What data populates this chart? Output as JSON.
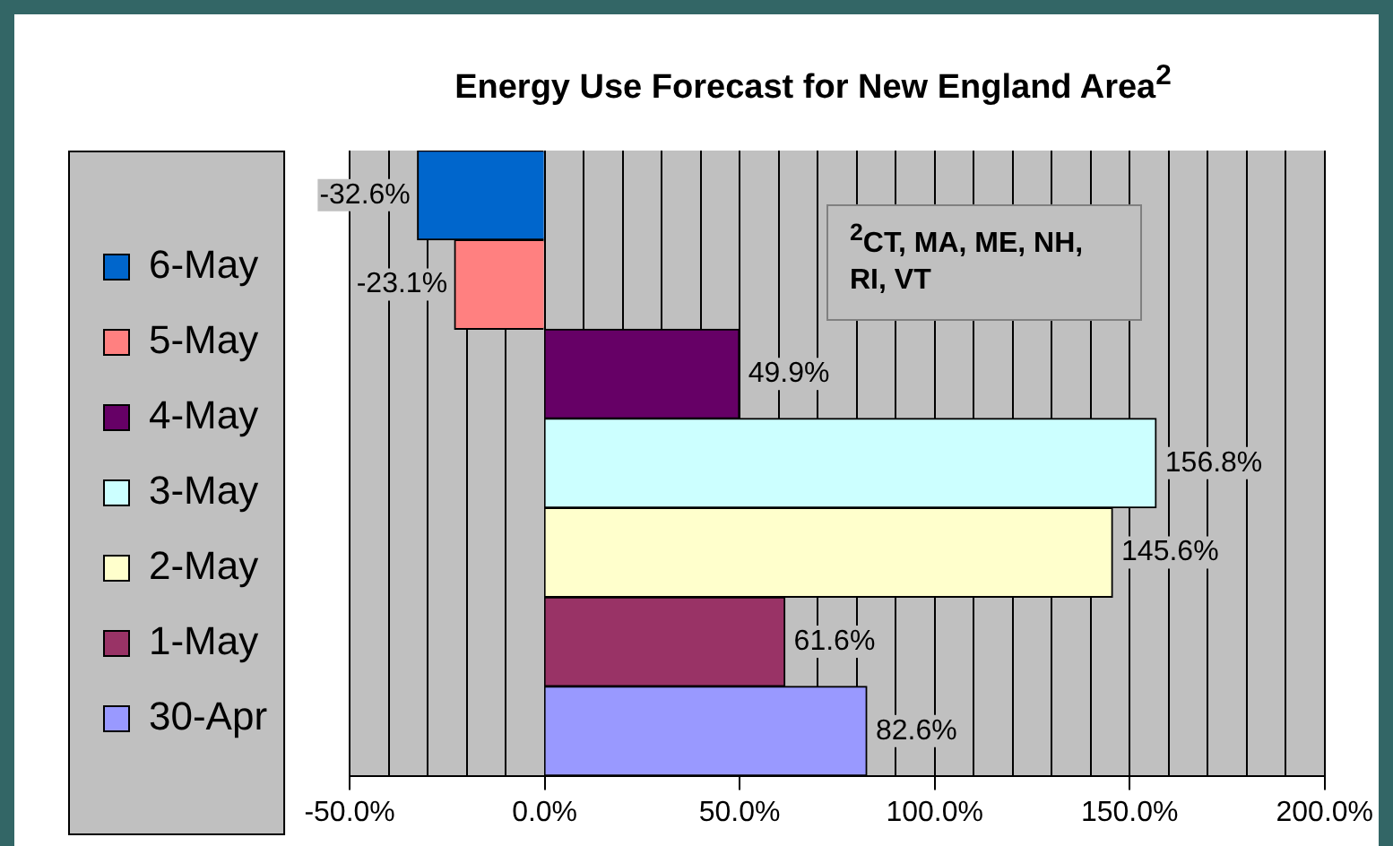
{
  "chart_data": {
    "type": "bar",
    "orientation": "horizontal",
    "title": "Energy Use Forecast for New England Area$^{2}$",
    "categories": [
      null,
      null,
      null,
      null,
      null,
      null,
      null
    ],
    "series": [
      {
        "name": "6-May",
        "color": "#0066cc",
        "values": [
          -32.6,
          null,
          null,
          null,
          null,
          null,
          null
        ],
        "value_labels": [
          "-32.6%",
          null,
          null,
          null,
          null,
          null,
          null
        ]
      },
      {
        "name": "5-May",
        "color": "#ff8080",
        "values": [
          null,
          -23.1,
          null,
          null,
          null,
          null,
          null
        ],
        "value_labels": [
          null,
          "-23.1%",
          null,
          null,
          null,
          null,
          null
        ]
      },
      {
        "name": "4-May",
        "color": "#660066",
        "values": [
          null,
          null,
          49.9,
          null,
          null,
          null,
          null
        ],
        "value_labels": [
          null,
          null,
          "49.9%",
          null,
          null,
          null,
          null
        ]
      },
      {
        "name": "3-May",
        "color": "#ccffff",
        "values": [
          null,
          null,
          null,
          156.8,
          null,
          null,
          null
        ],
        "value_labels": [
          null,
          null,
          null,
          "156.8%",
          null,
          null,
          null
        ]
      },
      {
        "name": "2-May",
        "color": "#ffffcc",
        "values": [
          null,
          null,
          null,
          null,
          145.6,
          null,
          null
        ],
        "value_labels": [
          null,
          null,
          null,
          null,
          "145.6%",
          null,
          null
        ]
      },
      {
        "name": "1-May",
        "color": "#993366",
        "values": [
          null,
          null,
          null,
          null,
          null,
          61.6,
          null
        ],
        "value_labels": [
          null,
          null,
          null,
          null,
          null,
          "61.6%",
          null
        ]
      },
      {
        "name": "30-Apr",
        "color": "#9999ff",
        "values": [
          null,
          null,
          null,
          null,
          null,
          null,
          82.6
        ],
        "value_labels": [
          null,
          null,
          null,
          null,
          null,
          null,
          "82.6%"
        ]
      }
    ],
    "xlim": [
      -50,
      200
    ],
    "xticks": [
      {
        "value": -50,
        "label": "-50.0%"
      },
      {
        "value": -40,
        "label": null
      },
      {
        "value": -30,
        "label": null
      },
      {
        "value": -20,
        "label": null
      },
      {
        "value": -10,
        "label": null
      },
      {
        "value": 0,
        "label": "0.0%"
      },
      {
        "value": 10,
        "label": null
      },
      {
        "value": 20,
        "label": null
      },
      {
        "value": 30,
        "label": null
      },
      {
        "value": 40,
        "label": null
      },
      {
        "value": 50,
        "label": "50.0%"
      },
      {
        "value": 60,
        "label": null
      },
      {
        "value": 70,
        "label": null
      },
      {
        "value": 80,
        "label": null
      },
      {
        "value": 90,
        "label": null
      },
      {
        "value": 100,
        "label": "100.0%"
      },
      {
        "value": 110,
        "label": null
      },
      {
        "value": 120,
        "label": null
      },
      {
        "value": 130,
        "label": null
      },
      {
        "value": 140,
        "label": null
      },
      {
        "value": 150,
        "label": "150.0%"
      },
      {
        "value": 160,
        "label": null
      },
      {
        "value": 170,
        "label": null
      },
      {
        "value": 180,
        "label": null
      },
      {
        "value": 190,
        "label": null
      },
      {
        "value": 200,
        "label": "200.0%"
      }
    ],
    "grid": "x",
    "legend": "left",
    "annotations": [
      "$^{2}$CT, MA, ME, NH, RI, VT"
    ]
  }
}
